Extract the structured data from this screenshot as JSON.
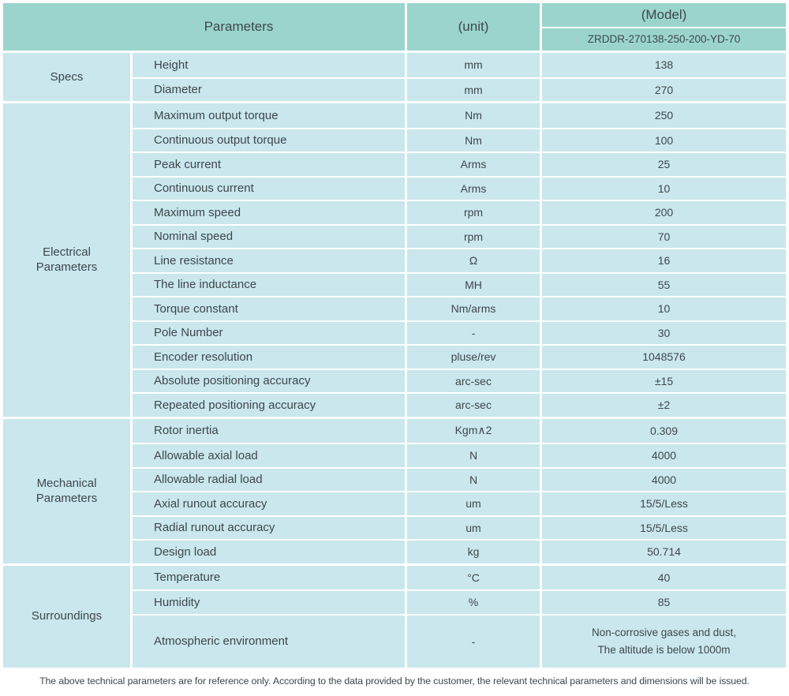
{
  "colors": {
    "header_bg": "#9ad4cd",
    "row_bg": "#c9e7ed",
    "text": "#3e474b",
    "divider": "#ffffff",
    "page_bg": "#ffffff"
  },
  "header": {
    "parameters_label": "Parameters",
    "unit_label": "(unit)",
    "model_label": "(Model)",
    "model_value": "ZRDDR-270138-250-200-YD-70"
  },
  "groups": [
    {
      "label": "Specs",
      "rows": [
        {
          "parameter": "Height",
          "unit": "mm",
          "value": "138"
        },
        {
          "parameter": "Diameter",
          "unit": "mm",
          "value": "270"
        }
      ]
    },
    {
      "label": "Electrical\nParameters",
      "rows": [
        {
          "parameter": "Maximum output torque",
          "unit": "Nm",
          "value": "250"
        },
        {
          "parameter": "Continuous output torque",
          "unit": "Nm",
          "value": "100"
        },
        {
          "parameter": "Peak current",
          "unit": "Arms",
          "value": "25"
        },
        {
          "parameter": "Continuous current",
          "unit": "Arms",
          "value": "10"
        },
        {
          "parameter": "Maximum speed",
          "unit": "rpm",
          "value": "200"
        },
        {
          "parameter": "Nominal speed",
          "unit": "rpm",
          "value": "70"
        },
        {
          "parameter": "Line resistance",
          "unit": "Ω",
          "value": "16"
        },
        {
          "parameter": "The line inductance",
          "unit": "MH",
          "value": "55"
        },
        {
          "parameter": "Torque constant",
          "unit": "Nm/arms",
          "value": "10"
        },
        {
          "parameter": "Pole Number",
          "unit": "-",
          "value": "30"
        },
        {
          "parameter": "Encoder resolution",
          "unit": "pluse/rev",
          "value": "1048576"
        },
        {
          "parameter": "Absolute positioning accuracy",
          "unit": "arc-sec",
          "value": "±15"
        },
        {
          "parameter": "Repeated positioning accuracy",
          "unit": "arc-sec",
          "value": "±2"
        }
      ]
    },
    {
      "label": "Mechanical\nParameters",
      "rows": [
        {
          "parameter": "Rotor inertia",
          "unit": "Kgm∧2",
          "value": "0.309"
        },
        {
          "parameter": "Allowable axial load",
          "unit": "N",
          "value": "4000"
        },
        {
          "parameter": "Allowable radial load",
          "unit": "N",
          "value": "4000"
        },
        {
          "parameter": "Axial runout accuracy",
          "unit": "um",
          "value": "15/5/Less"
        },
        {
          "parameter": "Radial runout accuracy",
          "unit": "um",
          "value": "15/5/Less"
        },
        {
          "parameter": "Design load",
          "unit": "kg",
          "value": "50.714"
        }
      ]
    },
    {
      "label": "Surroundings",
      "rows": [
        {
          "parameter": "Temperature",
          "unit": "°C",
          "value": "40"
        },
        {
          "parameter": "Humidity",
          "unit": "%",
          "value": "85"
        },
        {
          "parameter": "Atmospheric environment",
          "unit": "-",
          "tall": true,
          "value_lines": [
            "Non-corrosive gases and dust,",
            "The altitude is below 1000m"
          ]
        }
      ]
    }
  ],
  "footer_note": "The above technical parameters are for reference only. According to the data provided by the customer, the relevant technical parameters and dimensions will be issued."
}
